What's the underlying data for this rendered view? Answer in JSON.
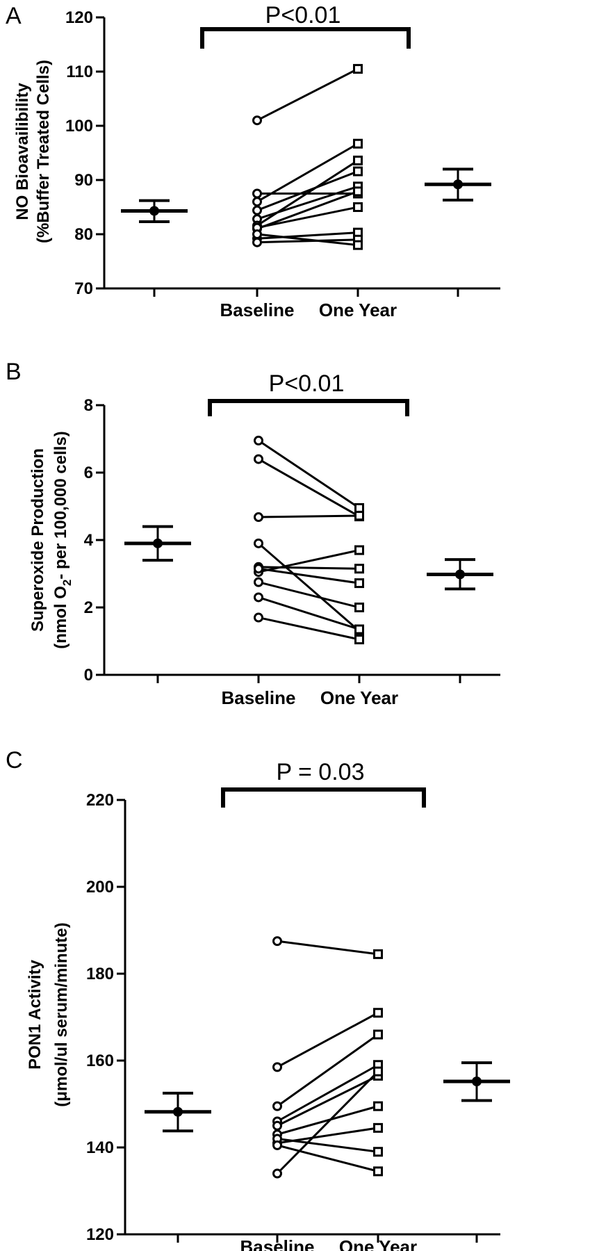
{
  "chart_data": [
    {
      "type": "scatter",
      "panel_label": "A",
      "annotation": "P<0.01",
      "ylabel_line1": "NO Bioavailibility",
      "ylabel_line2": "(%Buffer Treated Cells)",
      "ylabel_sub": "",
      "ylabel_line2_tail": "",
      "categories": [
        "Baseline",
        "One Year"
      ],
      "ylim": [
        70,
        120
      ],
      "yticks": [
        "70",
        "80",
        "90",
        "100",
        "110",
        "120"
      ],
      "grid": false,
      "paired": [
        [
          101.0,
          110.5
        ],
        [
          87.5,
          87.5
        ],
        [
          86.0,
          96.7
        ],
        [
          84.4,
          91.6
        ],
        [
          82.8,
          88.8
        ],
        [
          81.6,
          93.6
        ],
        [
          81.0,
          87.9
        ],
        [
          81.2,
          85.0
        ],
        [
          79.2,
          80.3
        ],
        [
          78.5,
          79.0
        ],
        [
          80.0,
          78.0
        ]
      ],
      "summary": {
        "baseline": {
          "mean": 84.3,
          "upper": 86.2,
          "lower": 82.3
        },
        "one_year": {
          "mean": 89.2,
          "upper": 92.0,
          "lower": 86.3
        }
      }
    },
    {
      "type": "scatter",
      "panel_label": "B",
      "annotation": "P<0.01",
      "ylabel_line1": "Superoxide Production",
      "ylabel_line2": "(nmol O",
      "ylabel_sub": "2",
      "ylabel_line2_tail": "- per 100,000 cells)",
      "categories": [
        "Baseline",
        "One Year"
      ],
      "ylim": [
        0,
        8
      ],
      "yticks": [
        "0",
        "2",
        "4",
        "6",
        "8"
      ],
      "grid": false,
      "paired": [
        [
          6.95,
          4.95
        ],
        [
          6.4,
          4.7
        ],
        [
          4.68,
          4.72
        ],
        [
          3.9,
          1.3
        ],
        [
          3.2,
          3.15
        ],
        [
          3.05,
          3.7
        ],
        [
          2.75,
          2.0
        ],
        [
          2.3,
          1.35
        ],
        [
          1.7,
          1.05
        ],
        [
          3.15,
          2.72
        ]
      ],
      "summary": {
        "baseline": {
          "mean": 3.9,
          "upper": 4.4,
          "lower": 3.4
        },
        "one_year": {
          "mean": 2.98,
          "upper": 3.42,
          "lower": 2.55
        }
      }
    },
    {
      "type": "scatter",
      "panel_label": "C",
      "annotation": "P = 0.03",
      "ylabel_line1": "PON1 Activity",
      "ylabel_line2": "(μmol/ul serum/minute)",
      "ylabel_sub": "",
      "ylabel_line2_tail": "",
      "categories": [
        "Baseline",
        "One Year"
      ],
      "ylim": [
        120,
        220
      ],
      "yticks": [
        "120",
        "140",
        "160",
        "180",
        "200",
        "220"
      ],
      "grid": false,
      "paired": [
        [
          187.5,
          184.5
        ],
        [
          158.5,
          171.0
        ],
        [
          149.5,
          166.0
        ],
        [
          146.0,
          159.0
        ],
        [
          145.0,
          156.5
        ],
        [
          143.0,
          149.5
        ],
        [
          141.0,
          144.5
        ],
        [
          134.0,
          157.5
        ],
        [
          142.0,
          139.0
        ],
        [
          140.5,
          134.5
        ]
      ],
      "summary": {
        "baseline": {
          "mean": 148.2,
          "upper": 152.5,
          "lower": 143.8
        },
        "one_year": {
          "mean": 155.2,
          "upper": 159.5,
          "lower": 150.8
        }
      }
    }
  ]
}
